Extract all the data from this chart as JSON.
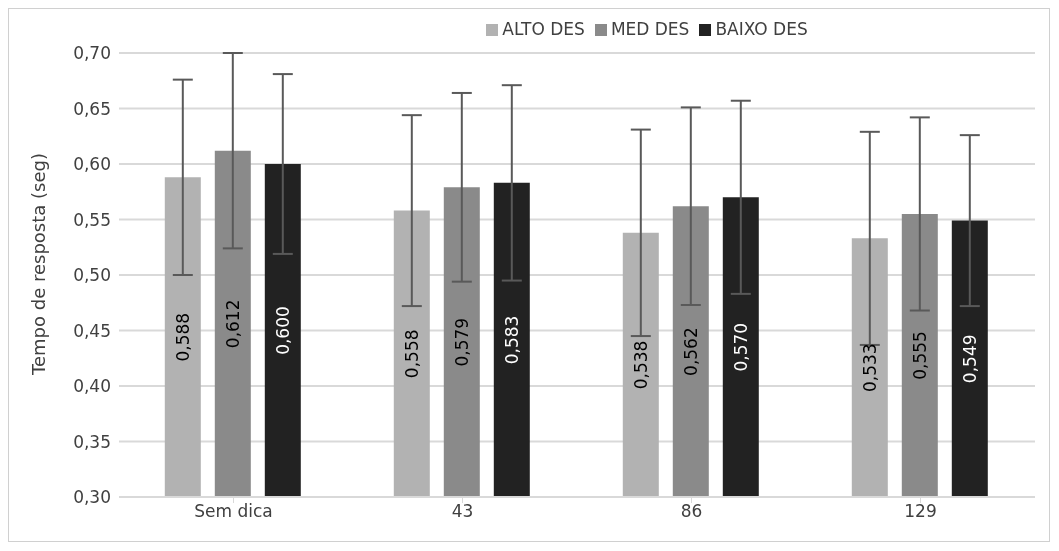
{
  "chart_data": {
    "type": "bar",
    "ylabel": "Tempo de resposta (seg)",
    "categories": [
      "Sem dica",
      "43",
      "86",
      "129"
    ],
    "series": [
      {
        "name": "ALTO DES",
        "color": "#b2b2b2",
        "values": [
          0.588,
          0.558,
          0.538,
          0.533
        ],
        "errors": [
          0.088,
          0.086,
          0.093,
          0.096
        ],
        "value_labels": [
          "0,588",
          "0,558",
          "0,538",
          "0,533"
        ]
      },
      {
        "name": "MED DES",
        "color": "#8a8a8a",
        "values": [
          0.612,
          0.579,
          0.562,
          0.555
        ],
        "errors": [
          0.088,
          0.085,
          0.089,
          0.087
        ],
        "value_labels": [
          "0,612",
          "0,579",
          "0,562",
          "0,555"
        ]
      },
      {
        "name": "BAIXO DES",
        "color": "#222222",
        "values": [
          0.6,
          0.583,
          0.57,
          0.549
        ],
        "errors": [
          0.081,
          0.088,
          0.087,
          0.077
        ],
        "value_labels": [
          "0,600",
          "0,583",
          "0,570",
          "0,549"
        ]
      }
    ],
    "ylim": [
      0.3,
      0.7
    ],
    "yticks": [
      {
        "value": 0.3,
        "label": "0,30"
      },
      {
        "value": 0.35,
        "label": "0,35"
      },
      {
        "value": 0.4,
        "label": "0,40"
      },
      {
        "value": 0.45,
        "label": "0,45"
      },
      {
        "value": 0.5,
        "label": "0,50"
      },
      {
        "value": 0.55,
        "label": "0,55"
      },
      {
        "value": 0.6,
        "label": "0,60"
      },
      {
        "value": 0.65,
        "label": "0,65"
      },
      {
        "value": 0.7,
        "label": "0,70"
      }
    ],
    "grid": "y",
    "legend": "top"
  }
}
